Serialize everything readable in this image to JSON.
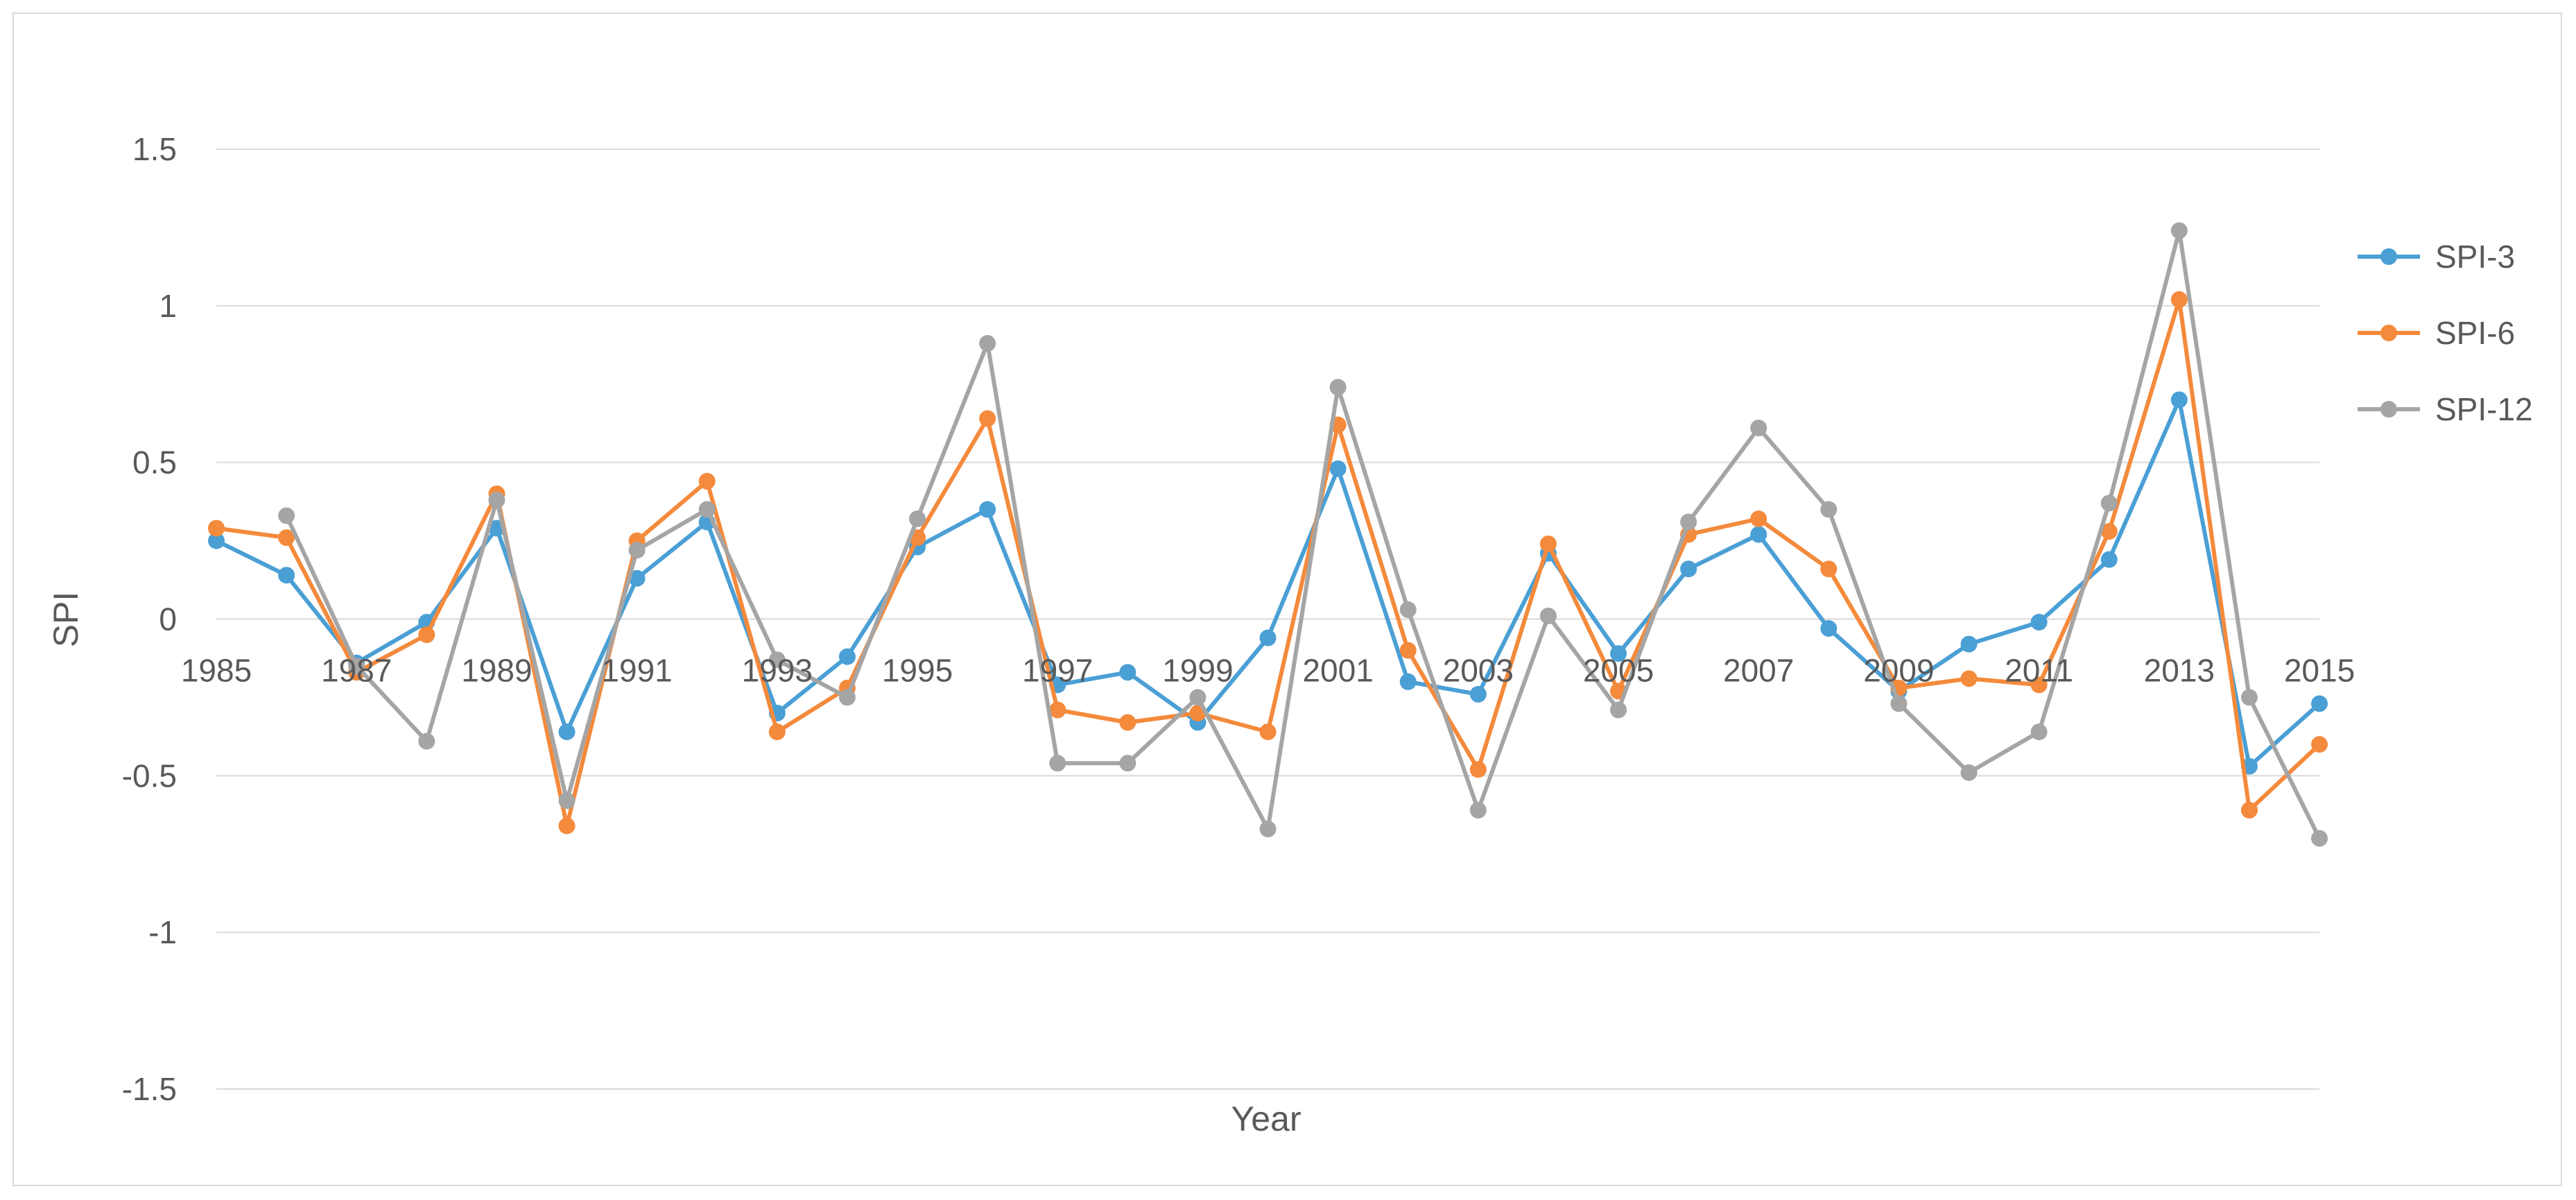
{
  "chart_data": {
    "type": "line",
    "title": "",
    "xlabel": "Year",
    "ylabel": "SPI",
    "ylim": [
      -1.5,
      1.5
    ],
    "yticks": [
      1.5,
      1,
      0.5,
      0,
      -0.5,
      -1,
      -1.5
    ],
    "ytick_labels": [
      "1.5",
      "1",
      "0.5",
      "0",
      "-0.5",
      "-1",
      "-1.5"
    ],
    "x": [
      1985,
      1986,
      1987,
      1988,
      1989,
      1990,
      1991,
      1992,
      1993,
      1994,
      1995,
      1996,
      1997,
      1998,
      1999,
      2000,
      2001,
      2002,
      2003,
      2004,
      2005,
      2006,
      2007,
      2008,
      2009,
      2010,
      2011,
      2012,
      2013,
      2014,
      2015
    ],
    "xtick_labels": [
      "1985",
      "1987",
      "1989",
      "1991",
      "1993",
      "1995",
      "1997",
      "1999",
      "2001",
      "2003",
      "2005",
      "2007",
      "2009",
      "2011",
      "2013",
      "2015"
    ],
    "grid": true,
    "legend": "right",
    "series": [
      {
        "name": "SPI-3",
        "color": "#4a9fd5",
        "values": [
          0.25,
          0.14,
          -0.14,
          -0.01,
          0.29,
          -0.36,
          0.13,
          0.31,
          -0.3,
          -0.12,
          0.23,
          0.35,
          -0.21,
          -0.17,
          -0.33,
          -0.06,
          0.48,
          -0.2,
          -0.24,
          0.21,
          -0.11,
          0.16,
          0.27,
          -0.03,
          -0.23,
          -0.08,
          -0.01,
          0.19,
          0.7,
          -0.47,
          -0.27
        ]
      },
      {
        "name": "SPI-6",
        "color": "#f48a3c",
        "values": [
          0.29,
          0.26,
          -0.17,
          -0.05,
          0.4,
          -0.66,
          0.25,
          0.44,
          -0.36,
          -0.22,
          0.26,
          0.64,
          -0.29,
          -0.33,
          -0.3,
          -0.36,
          0.62,
          -0.1,
          -0.48,
          0.24,
          -0.23,
          0.27,
          0.32,
          0.16,
          -0.22,
          -0.19,
          -0.21,
          0.28,
          1.02,
          -0.61,
          -0.4
        ]
      },
      {
        "name": "SPI-12",
        "color": "#a5a5a5",
        "values": [
          null,
          0.33,
          -0.15,
          -0.39,
          0.38,
          -0.58,
          0.22,
          0.35,
          -0.13,
          -0.25,
          0.32,
          0.88,
          -0.46,
          -0.46,
          -0.25,
          -0.67,
          0.74,
          0.03,
          -0.61,
          0.01,
          -0.29,
          0.31,
          0.61,
          0.35,
          -0.27,
          -0.49,
          -0.36,
          0.37,
          1.24,
          -0.25,
          -0.7
        ]
      }
    ]
  }
}
